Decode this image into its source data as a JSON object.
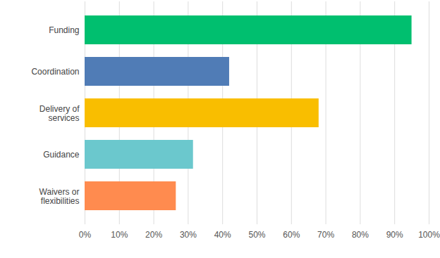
{
  "chart_data": {
    "type": "bar",
    "orientation": "horizontal",
    "categories": [
      "Funding",
      "Coordination",
      "Delivery of services",
      "Guidance",
      "Waivers or flexibilities"
    ],
    "values": [
      95,
      42,
      68,
      31.5,
      26.5
    ],
    "colors": [
      "#00bf6f",
      "#507cb6",
      "#f9be00",
      "#6bc8cd",
      "#ff8b4f"
    ],
    "xlim": [
      0,
      100
    ],
    "xticks": [
      {
        "value": 0,
        "label": "0%"
      },
      {
        "value": 10,
        "label": "10%"
      },
      {
        "value": 20,
        "label": "20%"
      },
      {
        "value": 30,
        "label": "30%"
      },
      {
        "value": 40,
        "label": "40%"
      },
      {
        "value": 50,
        "label": "50%"
      },
      {
        "value": 60,
        "label": "60%"
      },
      {
        "value": 70,
        "label": "70%"
      },
      {
        "value": 80,
        "label": "80%"
      },
      {
        "value": 90,
        "label": "90%"
      },
      {
        "value": 100,
        "label": "100%"
      }
    ],
    "grid": true
  }
}
